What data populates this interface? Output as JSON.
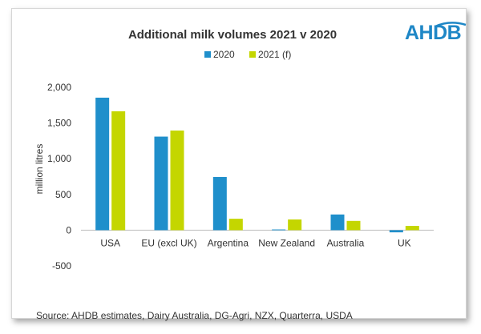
{
  "brand": {
    "logo_text": "AHDB",
    "color": "#1f87c6"
  },
  "source": "Source: AHDB estimates, Dairy Australia, DG-Agri, NZX, Quarterra, USDA",
  "chart_data": {
    "type": "bar",
    "title": "Additional milk volumes 2021 v 2020",
    "xlabel": "",
    "ylabel": "million litres",
    "ylim": [
      -500,
      2000
    ],
    "yticks": [
      2000,
      1500,
      1000,
      500,
      0,
      -500
    ],
    "ytick_labels": [
      "2,000",
      "1,500",
      "1,000",
      "500",
      "0",
      "-500"
    ],
    "grid": false,
    "legend_position": "top-center",
    "categories": [
      "USA",
      "EU (excl UK)",
      "Argentina",
      "New Zealand",
      "Australia",
      "UK"
    ],
    "series": [
      {
        "name": "2020",
        "color": "#1f8fcb",
        "values": [
          1855,
          1310,
          745,
          10,
          220,
          -30
        ]
      },
      {
        "name": "2021 (f)",
        "color": "#c4d600",
        "values": [
          1665,
          1395,
          160,
          150,
          130,
          60
        ]
      }
    ]
  }
}
